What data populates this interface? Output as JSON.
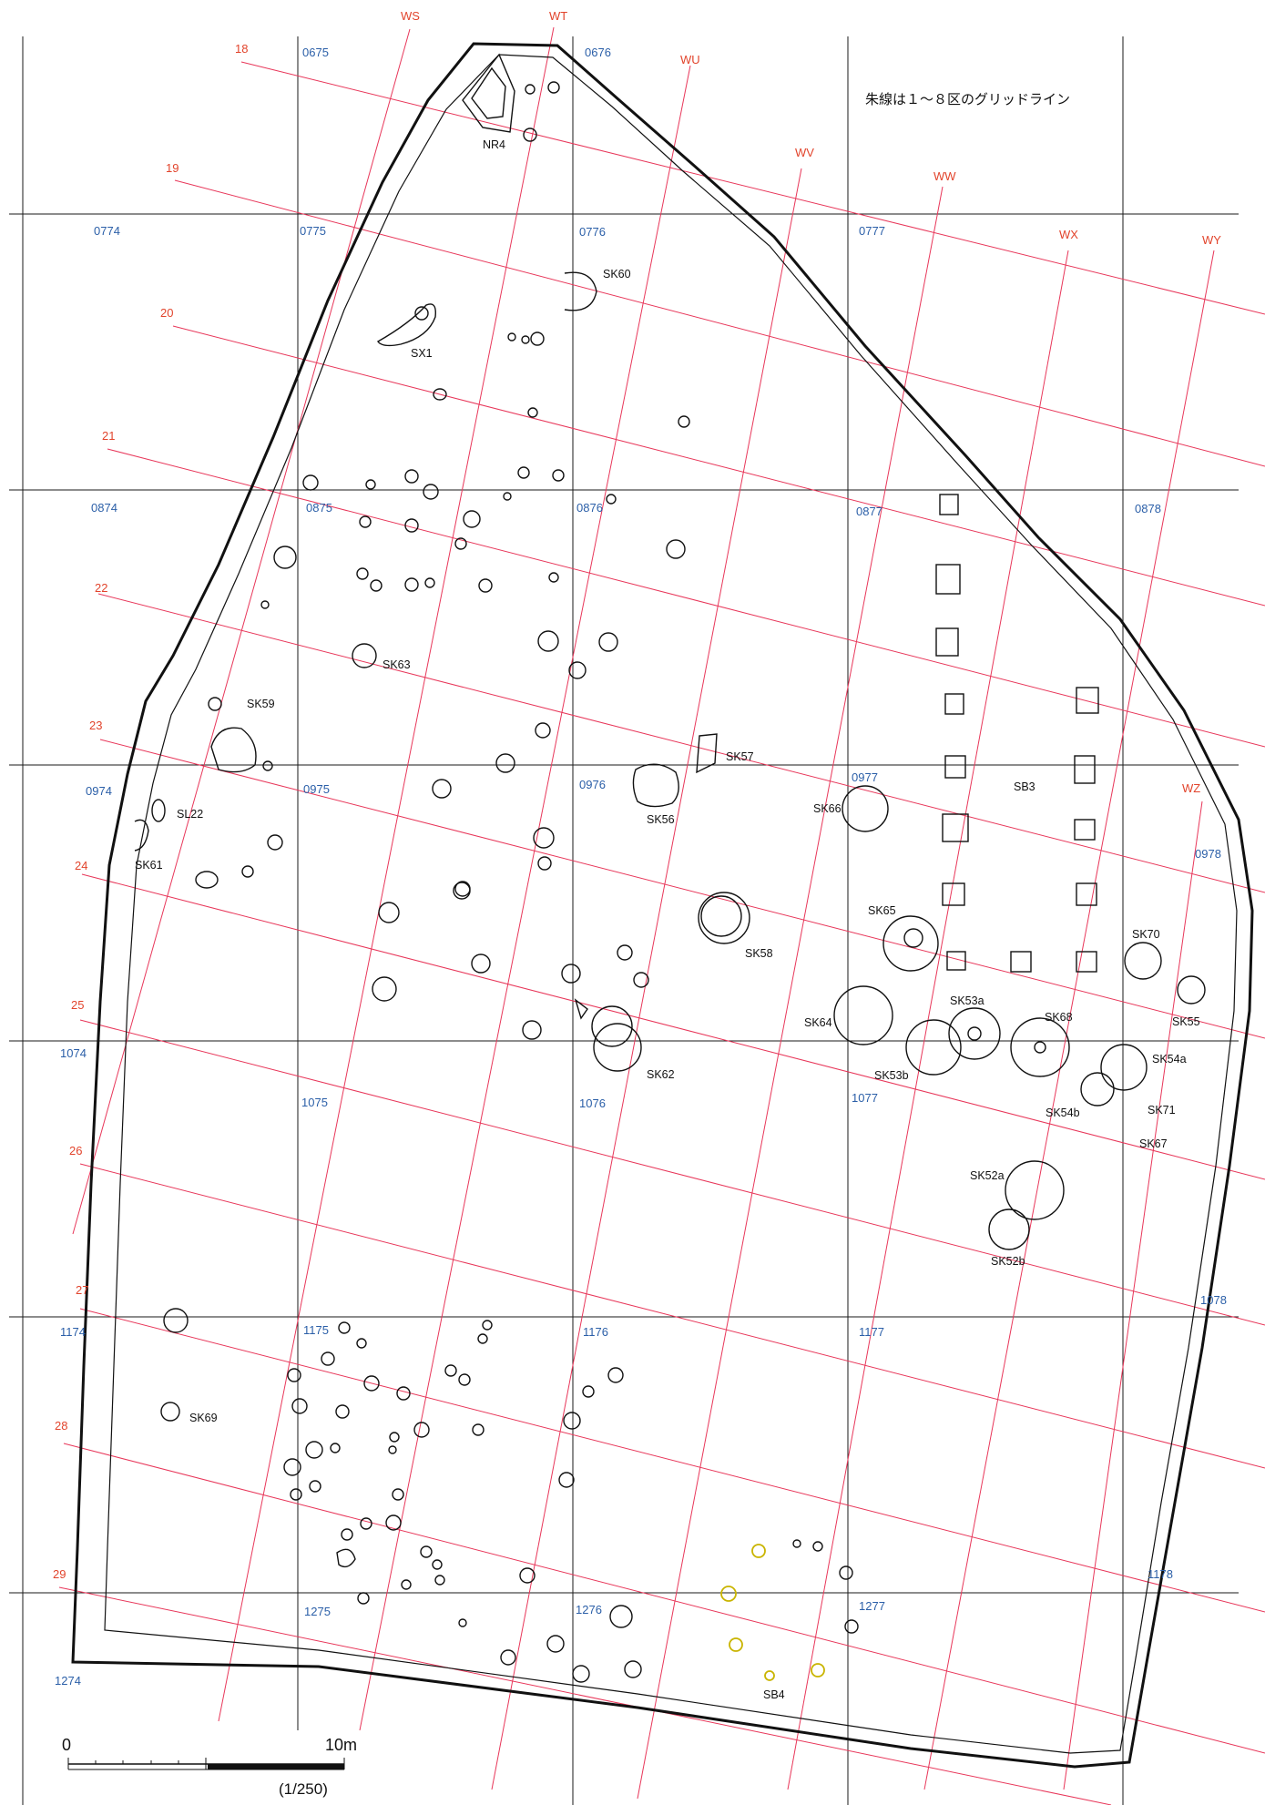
{
  "note": "朱線は１～８区のグリッドライン",
  "blue_labels": [
    "0675",
    "0676",
    "0774",
    "0775",
    "0776",
    "0777",
    "0874",
    "0875",
    "0876",
    "0877",
    "0878",
    "0974",
    "0975",
    "0976",
    "0977",
    "0978",
    "1074",
    "1075",
    "1076",
    "1077",
    "1078",
    "1174",
    "1175",
    "1176",
    "1177",
    "1178",
    "1274",
    "1275",
    "1276",
    "1277"
  ],
  "red_col_labels": [
    "WS",
    "WT",
    "WU",
    "WV",
    "WW",
    "WX",
    "WY",
    "WZ"
  ],
  "red_row_labels": [
    "18",
    "19",
    "20",
    "21",
    "22",
    "23",
    "24",
    "25",
    "26",
    "27",
    "28",
    "29"
  ],
  "feature_labels": [
    "NR4",
    "SK60",
    "SX1",
    "SK63",
    "SK59",
    "SK57",
    "SL22",
    "SK61",
    "SK56",
    "SK66",
    "SB3",
    "SK65",
    "SK58",
    "SK70",
    "SK53a",
    "SK68",
    "SK55",
    "SK64",
    "SK62",
    "SK53b",
    "SK54a",
    "SK54b",
    "SK71",
    "SK67",
    "SK52a",
    "SK52b",
    "SK69",
    "SB4"
  ],
  "scale": {
    "zero": "0",
    "ten": "10m",
    "ratio": "(1/250)"
  },
  "colors": {
    "grid": "#1a1a1a",
    "red_grid": "#e8375a",
    "blue_text": "#2b5fa8",
    "red_text": "#e2442c",
    "yellow_feature": "#c9b400"
  }
}
